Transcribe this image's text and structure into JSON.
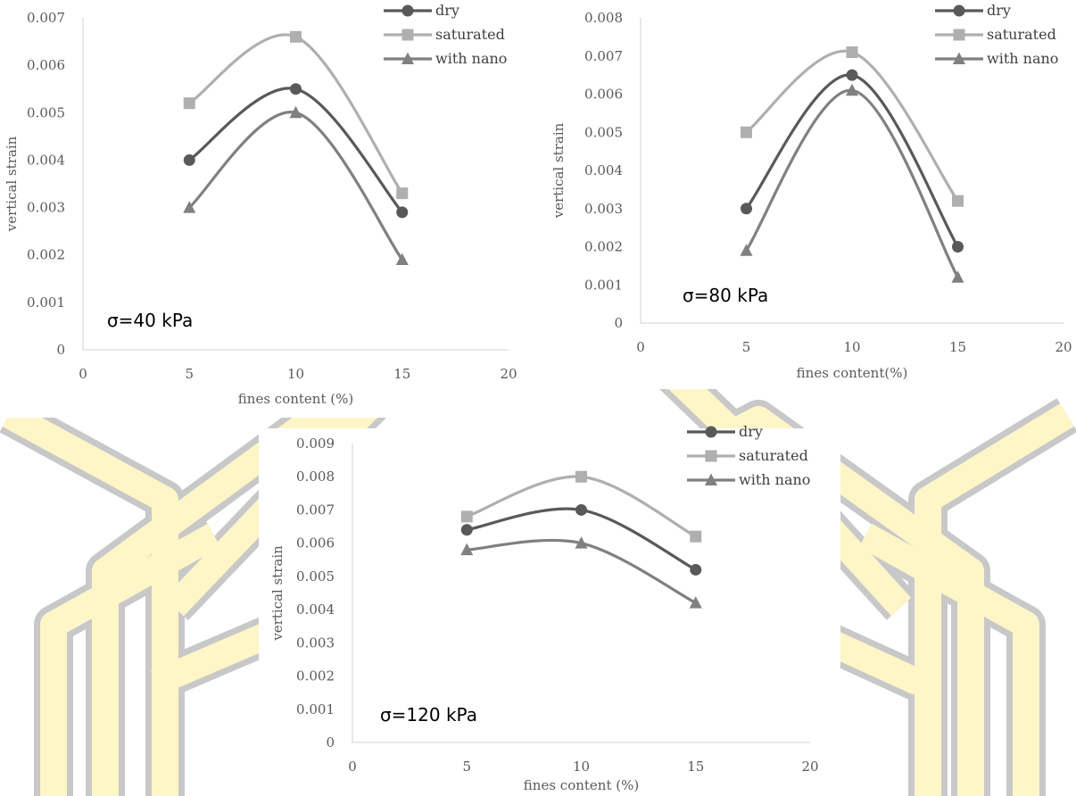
{
  "background": {
    "watermark_color": "#FFF6C8",
    "watermark_stroke": "#C8C8C8"
  },
  "chart_data": [
    {
      "type": "line",
      "title": "",
      "annotation": "σ=40 kPa",
      "xlabel": "fines content (%)",
      "ylabel": "vertical strain",
      "xlim": [
        0,
        20
      ],
      "ylim": [
        0,
        0.007
      ],
      "xticks": [
        0,
        5,
        10,
        15,
        20
      ],
      "xtick_labels": [
        "0",
        "5",
        "10",
        "15",
        "20"
      ],
      "yticks": [
        0,
        0.001,
        0.002,
        0.003,
        0.004,
        0.005,
        0.006,
        0.007
      ],
      "ytick_labels": [
        "0",
        "0.001",
        "0.002",
        "0.003",
        "0.004",
        "0.005",
        "0.006",
        "0.007"
      ],
      "grid": false,
      "legend_position": "top-right",
      "x": [
        5,
        10,
        15
      ],
      "series": [
        {
          "name": "dry",
          "values": [
            0.004,
            0.0055,
            0.0029
          ],
          "color": "#595959",
          "marker": "circle"
        },
        {
          "name": "saturated",
          "values": [
            0.0052,
            0.0066,
            0.0033
          ],
          "color": "#AFAFAF",
          "marker": "square"
        },
        {
          "name": "with nano",
          "values": [
            0.003,
            0.005,
            0.0019
          ],
          "color": "#808080",
          "marker": "triangle"
        }
      ]
    },
    {
      "type": "line",
      "title": "",
      "annotation": "σ=80 kPa",
      "xlabel": "fines content(%)",
      "ylabel": "vertical strain",
      "xlim": [
        0,
        20
      ],
      "ylim": [
        0,
        0.008
      ],
      "xticks": [
        0,
        5,
        10,
        15,
        20
      ],
      "xtick_labels": [
        "0",
        "5",
        "10",
        "15",
        "20"
      ],
      "yticks": [
        0,
        0.001,
        0.002,
        0.003,
        0.004,
        0.005,
        0.006,
        0.007,
        0.008
      ],
      "ytick_labels": [
        "0",
        "0.001",
        "0.002",
        "0.003",
        "0.004",
        "0.005",
        "0.006",
        "0.007",
        "0.008"
      ],
      "grid": false,
      "legend_position": "top-right",
      "x": [
        5,
        10,
        15
      ],
      "series": [
        {
          "name": "dry",
          "values": [
            0.003,
            0.0065,
            0.002
          ],
          "color": "#595959",
          "marker": "circle"
        },
        {
          "name": "saturated",
          "values": [
            0.005,
            0.0071,
            0.0032
          ],
          "color": "#AFAFAF",
          "marker": "square"
        },
        {
          "name": "with nano",
          "values": [
            0.0019,
            0.0061,
            0.0012
          ],
          "color": "#808080",
          "marker": "triangle"
        }
      ]
    },
    {
      "type": "line",
      "title": "",
      "annotation": "σ=120 kPa",
      "xlabel": "fines content (%)",
      "ylabel": "vertical strain",
      "xlim": [
        0,
        20
      ],
      "ylim": [
        0,
        0.009
      ],
      "xticks": [
        0,
        5,
        10,
        15,
        20
      ],
      "xtick_labels": [
        "0",
        "5",
        "10",
        "15",
        "20"
      ],
      "yticks": [
        0,
        0.001,
        0.002,
        0.003,
        0.004,
        0.005,
        0.006,
        0.007,
        0.008,
        0.009
      ],
      "ytick_labels": [
        "0",
        "0.001",
        "0.002",
        "0.003",
        "0.004",
        "0.005",
        "0.006",
        "0.007",
        "0.008",
        "0.009"
      ],
      "grid": false,
      "legend_position": "top-right",
      "x": [
        5,
        10,
        15
      ],
      "series": [
        {
          "name": "dry",
          "values": [
            0.0064,
            0.007,
            0.0052
          ],
          "color": "#595959",
          "marker": "circle"
        },
        {
          "name": "saturated",
          "values": [
            0.0068,
            0.008,
            0.0062
          ],
          "color": "#AFAFAF",
          "marker": "square"
        },
        {
          "name": "with nano",
          "values": [
            0.0058,
            0.006,
            0.0042
          ],
          "color": "#808080",
          "marker": "triangle"
        }
      ]
    }
  ]
}
